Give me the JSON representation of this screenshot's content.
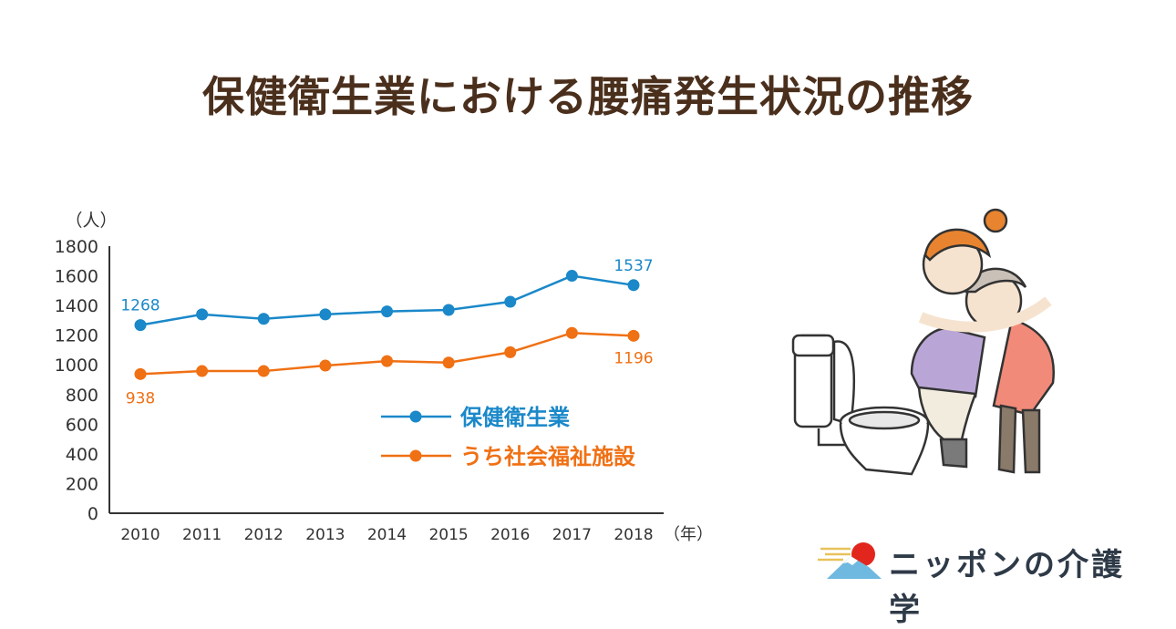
{
  "title": "保健衛生業における腰痛発生状況の推移",
  "colors": {
    "health": "#1a88c9",
    "welfare": "#f07014",
    "title": "#4a2f1c",
    "axis": "#333333"
  },
  "chart_data": {
    "type": "line",
    "x": [
      "2010",
      "2011",
      "2012",
      "2013",
      "2014",
      "2015",
      "2016",
      "2017",
      "2018"
    ],
    "x_unit": "（年）",
    "y_unit": "（人）",
    "ylim": [
      0,
      1800
    ],
    "yticks": [
      0,
      200,
      400,
      600,
      800,
      1000,
      1200,
      1400,
      1600,
      1800
    ],
    "series": [
      {
        "name": "保健衛生業",
        "color": "#1a88c9",
        "values": [
          1268,
          1340,
          1310,
          1340,
          1360,
          1370,
          1425,
          1600,
          1537
        ]
      },
      {
        "name": "うち社会福祉施設",
        "color": "#f07014",
        "values": [
          938,
          958,
          958,
          995,
          1025,
          1015,
          1085,
          1215,
          1196
        ]
      }
    ],
    "annotations": [
      {
        "series": 0,
        "index": 0,
        "text": "1268"
      },
      {
        "series": 0,
        "index": 8,
        "text": "1537"
      },
      {
        "series": 1,
        "index": 0,
        "text": "938"
      },
      {
        "series": 1,
        "index": 8,
        "text": "1196"
      }
    ],
    "legend": "inside-lower-right",
    "grid": false
  },
  "logo": {
    "text": "ニッポンの介護学"
  },
  "illustration": {
    "icon": "caregiver-hugging-elderly-near-toilet-illustration"
  }
}
